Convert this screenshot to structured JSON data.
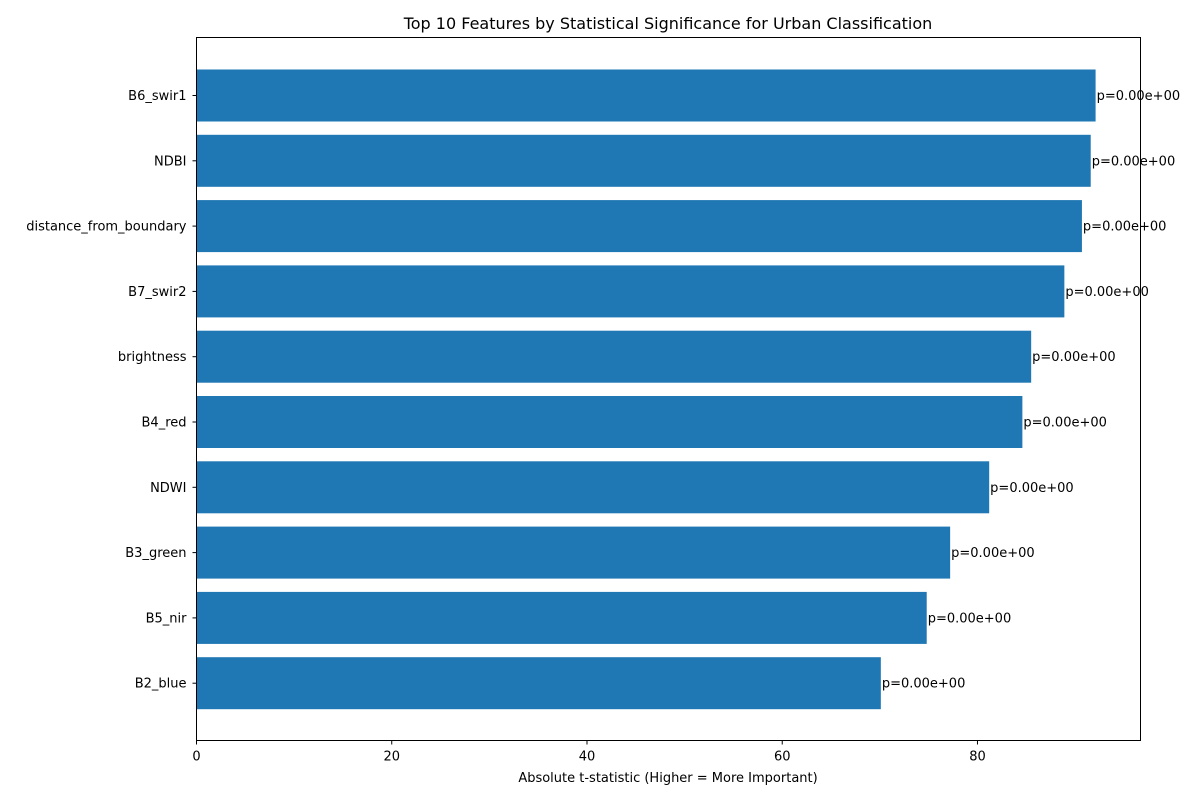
{
  "chart_data": {
    "type": "bar",
    "orientation": "horizontal",
    "title": "Top 10 Features by Statistical Significance for Urban Classification",
    "xlabel": "Absolute t-statistic (Higher = More Important)",
    "ylabel": "",
    "xlim": [
      0,
      96.7
    ],
    "xticks": [
      0,
      20,
      40,
      60,
      80
    ],
    "grid": false,
    "bar_color": "#1f77b4",
    "categories": [
      "B6_swir1",
      "NDBI",
      "distance_from_boundary",
      "B7_swir2",
      "brightness",
      "B4_red",
      "NDWI",
      "B3_green",
      "B5_nir",
      "B2_blue"
    ],
    "values": [
      92.1,
      91.6,
      90.7,
      88.9,
      85.5,
      84.6,
      81.2,
      77.2,
      74.8,
      70.1
    ],
    "annotations": [
      "p=0.00e+00",
      "p=0.00e+00",
      "p=0.00e+00",
      "p=0.00e+00",
      "p=0.00e+00",
      "p=0.00e+00",
      "p=0.00e+00",
      "p=0.00e+00",
      "p=0.00e+00",
      "p=0.00e+00"
    ]
  }
}
